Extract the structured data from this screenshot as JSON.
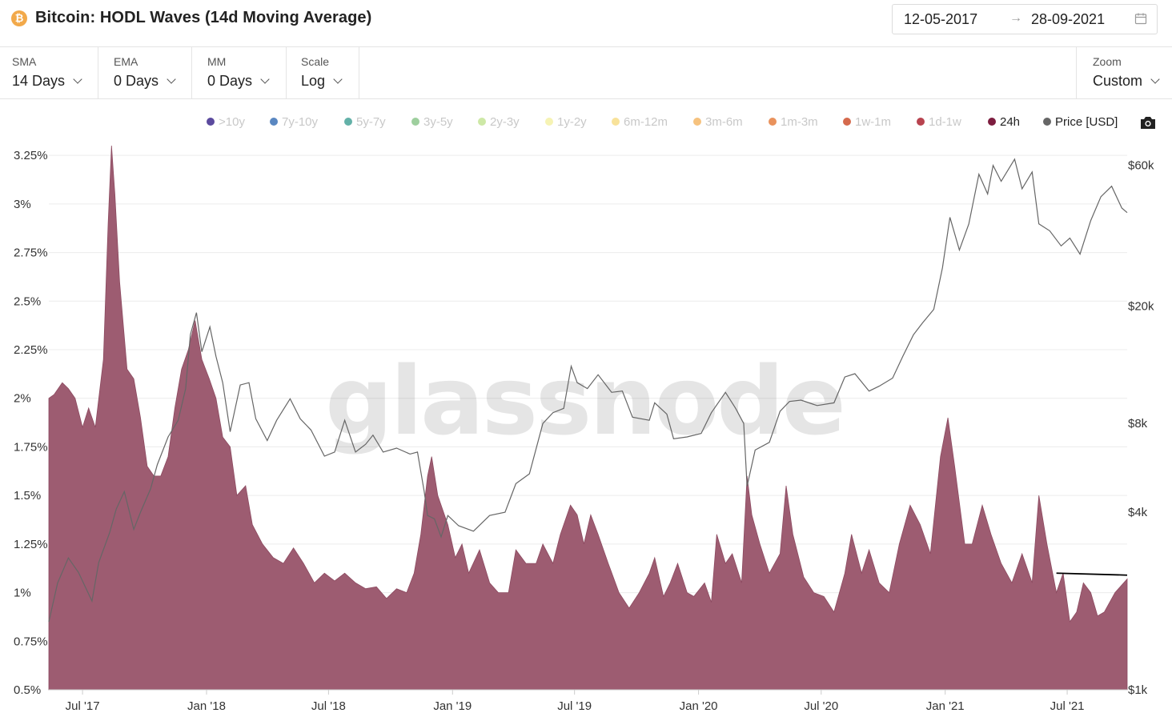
{
  "header": {
    "title": "Bitcoin: HODL Waves (14d Moving Average)",
    "coin_glyph": "₿",
    "date_start": "12-05-2017",
    "date_arrow": "→",
    "date_end": "28-09-2021",
    "calendar_icon": "calendar-icon"
  },
  "controls": [
    {
      "label": "SMA",
      "value": "14 Days"
    },
    {
      "label": "EMA",
      "value": "0 Days"
    },
    {
      "label": "MM",
      "value": "0 Days"
    },
    {
      "label": "Scale",
      "value": "Log"
    }
  ],
  "zoom": {
    "label": "Zoom",
    "value": "Custom"
  },
  "legend": [
    {
      "label": ">10y",
      "color": "#5b4a9e",
      "active": false
    },
    {
      "label": "7y-10y",
      "color": "#5a87c1",
      "active": false
    },
    {
      "label": "5y-7y",
      "color": "#63b1a8",
      "active": false
    },
    {
      "label": "3y-5y",
      "color": "#9ecf9e",
      "active": false
    },
    {
      "label": "2y-3y",
      "color": "#cde8a6",
      "active": false
    },
    {
      "label": "1y-2y",
      "color": "#f6f3b4",
      "active": false
    },
    {
      "label": "6m-12m",
      "color": "#f8e29a",
      "active": false
    },
    {
      "label": "3m-6m",
      "color": "#f6c27e",
      "active": false
    },
    {
      "label": "1m-3m",
      "color": "#e9925c",
      "active": false
    },
    {
      "label": "1w-1m",
      "color": "#d56a4d",
      "active": false
    },
    {
      "label": "1d-1w",
      "color": "#b8434f",
      "active": false
    },
    {
      "label": "24h",
      "color": "#7d1d3f",
      "active": true
    },
    {
      "label": "Price [USD]",
      "color": "#666666",
      "active": true
    }
  ],
  "camera_icon": "camera-icon",
  "watermark": "glassnode",
  "chart_data": {
    "type": "area",
    "title": "Bitcoin: HODL Waves (14d Moving Average)",
    "x_ticks": [
      "Jul '17",
      "Jan '18",
      "Jul '18",
      "Jan '19",
      "Jul '19",
      "Jan '20",
      "Jul '20",
      "Jan '21",
      "Jul '21"
    ],
    "y_left_ticks": [
      "0.5%",
      "0.75%",
      "1%",
      "1.25%",
      "1.5%",
      "1.75%",
      "2%",
      "2.25%",
      "2.5%",
      "2.75%",
      "3%",
      "3.25%"
    ],
    "y_left_range": [
      0.5,
      3.3
    ],
    "y_right_ticks": [
      "$1k",
      "$4k",
      "$8k",
      "$20k",
      "$60k"
    ],
    "y_right_values": [
      1000,
      4000,
      8000,
      20000,
      60000
    ],
    "y_right_scale": "log",
    "grid": true,
    "legend_position": "top",
    "area_color": "#9d5c71",
    "price_color": "#666666",
    "series": [
      {
        "name": "24h",
        "axis": "left",
        "points": [
          [
            "2017-05-12",
            2.0
          ],
          [
            "2017-05-20",
            2.02
          ],
          [
            "2017-06-01",
            2.08
          ],
          [
            "2017-06-10",
            2.05
          ],
          [
            "2017-06-20",
            2.0
          ],
          [
            "2017-07-01",
            1.85
          ],
          [
            "2017-07-10",
            1.95
          ],
          [
            "2017-07-20",
            1.85
          ],
          [
            "2017-08-01",
            2.2
          ],
          [
            "2017-08-08",
            2.9
          ],
          [
            "2017-08-13",
            3.3
          ],
          [
            "2017-08-18",
            3.05
          ],
          [
            "2017-08-25",
            2.6
          ],
          [
            "2017-09-05",
            2.15
          ],
          [
            "2017-09-15",
            2.1
          ],
          [
            "2017-09-25",
            1.9
          ],
          [
            "2017-10-05",
            1.65
          ],
          [
            "2017-10-15",
            1.6
          ],
          [
            "2017-10-25",
            1.6
          ],
          [
            "2017-11-05",
            1.7
          ],
          [
            "2017-11-15",
            1.95
          ],
          [
            "2017-11-25",
            2.15
          ],
          [
            "2017-12-05",
            2.25
          ],
          [
            "2017-12-15",
            2.4
          ],
          [
            "2017-12-25",
            2.2
          ],
          [
            "2018-01-05",
            2.1
          ],
          [
            "2018-01-15",
            2.0
          ],
          [
            "2018-01-25",
            1.8
          ],
          [
            "2018-02-05",
            1.75
          ],
          [
            "2018-02-15",
            1.5
          ],
          [
            "2018-02-28",
            1.55
          ],
          [
            "2018-03-10",
            1.35
          ],
          [
            "2018-03-25",
            1.25
          ],
          [
            "2018-04-10",
            1.18
          ],
          [
            "2018-04-25",
            1.15
          ],
          [
            "2018-05-10",
            1.23
          ],
          [
            "2018-05-25",
            1.15
          ],
          [
            "2018-06-10",
            1.05
          ],
          [
            "2018-06-25",
            1.1
          ],
          [
            "2018-07-10",
            1.06
          ],
          [
            "2018-07-25",
            1.1
          ],
          [
            "2018-08-10",
            1.05
          ],
          [
            "2018-08-25",
            1.02
          ],
          [
            "2018-09-10",
            1.03
          ],
          [
            "2018-09-25",
            0.97
          ],
          [
            "2018-10-10",
            1.02
          ],
          [
            "2018-10-25",
            1.0
          ],
          [
            "2018-11-05",
            1.1
          ],
          [
            "2018-11-15",
            1.3
          ],
          [
            "2018-11-25",
            1.6
          ],
          [
            "2018-12-01",
            1.7
          ],
          [
            "2018-12-10",
            1.5
          ],
          [
            "2018-12-25",
            1.35
          ],
          [
            "2019-01-05",
            1.18
          ],
          [
            "2019-01-15",
            1.25
          ],
          [
            "2019-01-25",
            1.1
          ],
          [
            "2019-02-10",
            1.22
          ],
          [
            "2019-02-25",
            1.05
          ],
          [
            "2019-03-10",
            1.0
          ],
          [
            "2019-03-25",
            1.0
          ],
          [
            "2019-04-05",
            1.22
          ],
          [
            "2019-04-20",
            1.15
          ],
          [
            "2019-05-05",
            1.15
          ],
          [
            "2019-05-15",
            1.25
          ],
          [
            "2019-05-30",
            1.15
          ],
          [
            "2019-06-10",
            1.3
          ],
          [
            "2019-06-25",
            1.45
          ],
          [
            "2019-07-05",
            1.4
          ],
          [
            "2019-07-15",
            1.25
          ],
          [
            "2019-07-25",
            1.4
          ],
          [
            "2019-08-05",
            1.3
          ],
          [
            "2019-08-20",
            1.15
          ],
          [
            "2019-09-05",
            1.0
          ],
          [
            "2019-09-20",
            0.92
          ],
          [
            "2019-10-05",
            1.0
          ],
          [
            "2019-10-20",
            1.1
          ],
          [
            "2019-10-28",
            1.18
          ],
          [
            "2019-11-10",
            0.98
          ],
          [
            "2019-11-20",
            1.05
          ],
          [
            "2019-12-01",
            1.15
          ],
          [
            "2019-12-15",
            1.0
          ],
          [
            "2019-12-25",
            0.98
          ],
          [
            "2020-01-10",
            1.05
          ],
          [
            "2020-01-20",
            0.95
          ],
          [
            "2020-01-28",
            1.3
          ],
          [
            "2020-02-10",
            1.15
          ],
          [
            "2020-02-20",
            1.2
          ],
          [
            "2020-03-05",
            1.05
          ],
          [
            "2020-03-13",
            1.6
          ],
          [
            "2020-03-20",
            1.4
          ],
          [
            "2020-04-01",
            1.25
          ],
          [
            "2020-04-15",
            1.1
          ],
          [
            "2020-05-01",
            1.2
          ],
          [
            "2020-05-10",
            1.55
          ],
          [
            "2020-05-20",
            1.3
          ],
          [
            "2020-06-05",
            1.08
          ],
          [
            "2020-06-20",
            1.0
          ],
          [
            "2020-07-05",
            0.98
          ],
          [
            "2020-07-20",
            0.9
          ],
          [
            "2020-08-05",
            1.1
          ],
          [
            "2020-08-15",
            1.3
          ],
          [
            "2020-08-30",
            1.1
          ],
          [
            "2020-09-10",
            1.22
          ],
          [
            "2020-09-25",
            1.05
          ],
          [
            "2020-10-10",
            1.0
          ],
          [
            "2020-10-25",
            1.25
          ],
          [
            "2020-11-10",
            1.45
          ],
          [
            "2020-11-25",
            1.35
          ],
          [
            "2020-12-10",
            1.2
          ],
          [
            "2020-12-25",
            1.7
          ],
          [
            "2021-01-05",
            1.9
          ],
          [
            "2021-01-15",
            1.65
          ],
          [
            "2021-01-30",
            1.25
          ],
          [
            "2021-02-10",
            1.25
          ],
          [
            "2021-02-25",
            1.45
          ],
          [
            "2021-03-10",
            1.3
          ],
          [
            "2021-03-25",
            1.15
          ],
          [
            "2021-04-10",
            1.05
          ],
          [
            "2021-04-25",
            1.2
          ],
          [
            "2021-05-10",
            1.05
          ],
          [
            "2021-05-20",
            1.5
          ],
          [
            "2021-06-01",
            1.25
          ],
          [
            "2021-06-15",
            1.0
          ],
          [
            "2021-06-25",
            1.1
          ],
          [
            "2021-07-05",
            0.85
          ],
          [
            "2021-07-15",
            0.9
          ],
          [
            "2021-07-25",
            1.05
          ],
          [
            "2021-08-05",
            1.0
          ],
          [
            "2021-08-15",
            0.88
          ],
          [
            "2021-08-25",
            0.9
          ],
          [
            "2021-09-10",
            1.0
          ],
          [
            "2021-09-28",
            1.07
          ]
        ]
      },
      {
        "name": "Price [USD]",
        "axis": "right",
        "points": [
          [
            "2017-05-12",
            1700
          ],
          [
            "2017-05-25",
            2300
          ],
          [
            "2017-06-10",
            2800
          ],
          [
            "2017-06-25",
            2500
          ],
          [
            "2017-07-15",
            2000
          ],
          [
            "2017-07-25",
            2700
          ],
          [
            "2017-08-10",
            3400
          ],
          [
            "2017-08-20",
            4100
          ],
          [
            "2017-09-01",
            4700
          ],
          [
            "2017-09-15",
            3500
          ],
          [
            "2017-09-25",
            4000
          ],
          [
            "2017-10-10",
            4800
          ],
          [
            "2017-10-20",
            5800
          ],
          [
            "2017-11-05",
            7200
          ],
          [
            "2017-11-20",
            8200
          ],
          [
            "2017-12-01",
            10500
          ],
          [
            "2017-12-08",
            16000
          ],
          [
            "2017-12-17",
            19000
          ],
          [
            "2017-12-25",
            14000
          ],
          [
            "2018-01-06",
            17000
          ],
          [
            "2018-01-15",
            13500
          ],
          [
            "2018-01-25",
            11000
          ],
          [
            "2018-02-05",
            7500
          ],
          [
            "2018-02-20",
            10800
          ],
          [
            "2018-03-05",
            11000
          ],
          [
            "2018-03-15",
            8300
          ],
          [
            "2018-04-01",
            7000
          ],
          [
            "2018-04-15",
            8200
          ],
          [
            "2018-05-05",
            9700
          ],
          [
            "2018-05-20",
            8300
          ],
          [
            "2018-06-05",
            7600
          ],
          [
            "2018-06-25",
            6200
          ],
          [
            "2018-07-10",
            6400
          ],
          [
            "2018-07-25",
            8200
          ],
          [
            "2018-08-10",
            6400
          ],
          [
            "2018-08-25",
            6800
          ],
          [
            "2018-09-05",
            7300
          ],
          [
            "2018-09-20",
            6400
          ],
          [
            "2018-10-10",
            6600
          ],
          [
            "2018-10-30",
            6300
          ],
          [
            "2018-11-10",
            6400
          ],
          [
            "2018-11-20",
            4700
          ],
          [
            "2018-11-25",
            3900
          ],
          [
            "2018-12-05",
            3800
          ],
          [
            "2018-12-15",
            3300
          ],
          [
            "2018-12-25",
            3900
          ],
          [
            "2019-01-10",
            3600
          ],
          [
            "2019-02-01",
            3450
          ],
          [
            "2019-02-25",
            3900
          ],
          [
            "2019-03-20",
            4000
          ],
          [
            "2019-04-05",
            5000
          ],
          [
            "2019-04-25",
            5400
          ],
          [
            "2019-05-15",
            8000
          ],
          [
            "2019-05-30",
            8700
          ],
          [
            "2019-06-15",
            9000
          ],
          [
            "2019-06-26",
            12500
          ],
          [
            "2019-07-05",
            11000
          ],
          [
            "2019-07-20",
            10500
          ],
          [
            "2019-08-05",
            11700
          ],
          [
            "2019-08-25",
            10200
          ],
          [
            "2019-09-10",
            10300
          ],
          [
            "2019-09-25",
            8400
          ],
          [
            "2019-10-20",
            8200
          ],
          [
            "2019-10-28",
            9400
          ],
          [
            "2019-11-15",
            8600
          ],
          [
            "2019-11-25",
            7100
          ],
          [
            "2019-12-15",
            7200
          ],
          [
            "2020-01-05",
            7400
          ],
          [
            "2020-01-20",
            8700
          ],
          [
            "2020-02-10",
            10200
          ],
          [
            "2020-02-25",
            9000
          ],
          [
            "2020-03-08",
            8000
          ],
          [
            "2020-03-13",
            4900
          ],
          [
            "2020-03-25",
            6500
          ],
          [
            "2020-04-15",
            6900
          ],
          [
            "2020-05-01",
            8800
          ],
          [
            "2020-05-15",
            9500
          ],
          [
            "2020-06-01",
            9600
          ],
          [
            "2020-06-25",
            9200
          ],
          [
            "2020-07-20",
            9400
          ],
          [
            "2020-08-05",
            11500
          ],
          [
            "2020-08-20",
            11800
          ],
          [
            "2020-09-10",
            10300
          ],
          [
            "2020-09-25",
            10700
          ],
          [
            "2020-10-15",
            11400
          ],
          [
            "2020-10-30",
            13500
          ],
          [
            "2020-11-15",
            16000
          ],
          [
            "2020-11-28",
            17500
          ],
          [
            "2020-12-15",
            19500
          ],
          [
            "2020-12-28",
            27000
          ],
          [
            "2021-01-08",
            40000
          ],
          [
            "2021-01-22",
            31000
          ],
          [
            "2021-02-05",
            38000
          ],
          [
            "2021-02-20",
            56000
          ],
          [
            "2021-03-05",
            48000
          ],
          [
            "2021-03-13",
            60000
          ],
          [
            "2021-03-25",
            53000
          ],
          [
            "2021-04-14",
            63000
          ],
          [
            "2021-04-25",
            50000
          ],
          [
            "2021-05-10",
            57000
          ],
          [
            "2021-05-20",
            38000
          ],
          [
            "2021-06-05",
            36000
          ],
          [
            "2021-06-22",
            32000
          ],
          [
            "2021-07-05",
            34000
          ],
          [
            "2021-07-20",
            30000
          ],
          [
            "2021-08-05",
            39000
          ],
          [
            "2021-08-20",
            47000
          ],
          [
            "2021-09-05",
            51000
          ],
          [
            "2021-09-20",
            43000
          ],
          [
            "2021-09-28",
            41500
          ]
        ]
      }
    ],
    "annotations": [
      {
        "type": "line",
        "from": [
          "2021-06-15",
          1.1
        ],
        "to": [
          "2021-09-28",
          1.09
        ],
        "color": "#000000"
      }
    ]
  }
}
